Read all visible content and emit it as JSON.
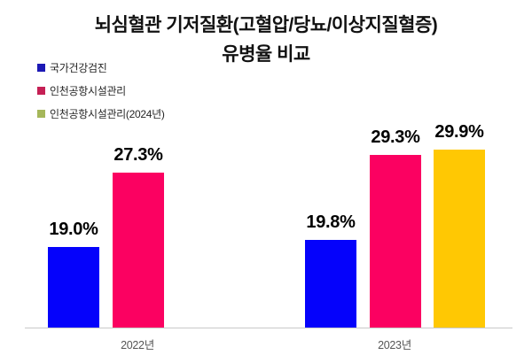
{
  "title": {
    "line1": "뇌심혈관 기저질환(고혈압/당뇨/이상지질혈증)",
    "line2": "유병율 비교"
  },
  "legend": {
    "position": "top-left",
    "items": [
      {
        "label": "국가건강검진",
        "swatch_color": "#1c19b5"
      },
      {
        "label": "인천공항시설관리",
        "swatch_color": "#c52055"
      },
      {
        "label": "인천공항시설관리(2024년)",
        "swatch_color": "#a5b75a"
      }
    ]
  },
  "chart_data": {
    "type": "bar",
    "title": "뇌심혈관 기저질환(고혈압/당뇨/이상지질혈증) 유병율 비교",
    "categories": [
      "2022년",
      "2023년"
    ],
    "series": [
      {
        "name": "국가건강검진",
        "color": "#0502fb",
        "values": [
          19.0,
          19.8
        ]
      },
      {
        "name": "인천공항시설관리",
        "color": "#fb0161",
        "values": [
          27.3,
          29.3
        ]
      },
      {
        "name": "인천공항시설관리(2024년)",
        "color": "#ffc803",
        "values": [
          null,
          29.9
        ]
      }
    ],
    "data_labels": [
      [
        "19.0%",
        "27.3%",
        null
      ],
      [
        "19.8%",
        "29.3%",
        "29.9%"
      ]
    ],
    "value_suffix": "%",
    "xlabel": "",
    "ylabel": "",
    "ylim": [
      10,
      33
    ],
    "grid": false,
    "y_axis_visible": false,
    "legend_position": "top-left",
    "colors": {
      "axis_line": "#c9c9c9",
      "category_label": "#555555",
      "data_label": "#000000",
      "background": "#ffffff"
    }
  }
}
